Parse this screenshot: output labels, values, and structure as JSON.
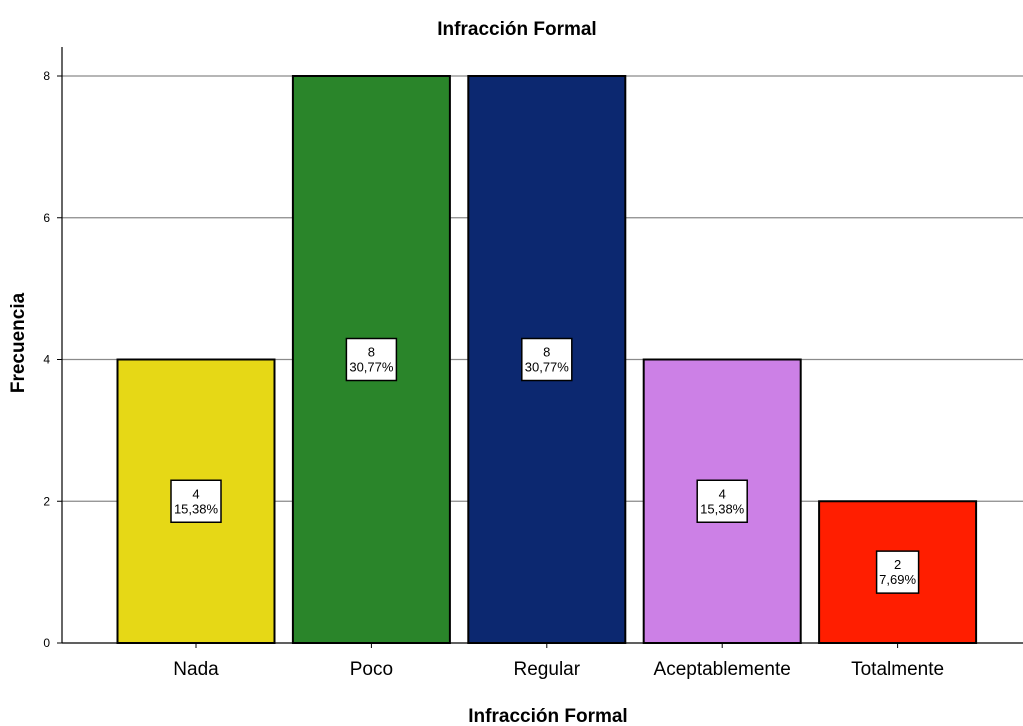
{
  "chart_data": {
    "type": "bar",
    "title": "Infracción Formal",
    "xlabel": "Infracción Formal",
    "ylabel": "Frecuencia",
    "categories": [
      "Nada",
      "Poco",
      "Regular",
      "Aceptablemente",
      "Totalmente"
    ],
    "values": [
      4,
      8,
      8,
      4,
      2
    ],
    "percent_labels": [
      "15,38%",
      "30,77%",
      "30,77%",
      "15,38%",
      "7,69%"
    ],
    "bar_colors": [
      "#e6d816",
      "#2a852a",
      "#0c2870",
      "#cc80e6",
      "#ff1e00"
    ],
    "ylim": [
      0,
      8
    ],
    "yticks": [
      0,
      2,
      4,
      6,
      8
    ],
    "grid": true,
    "legend": "none"
  }
}
